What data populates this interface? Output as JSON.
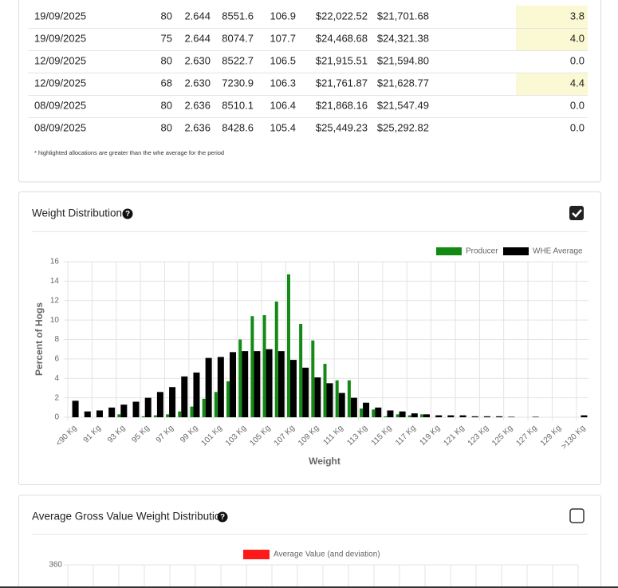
{
  "table": {
    "rows": [
      [
        "19/09/2025",
        "80",
        "2.644",
        "8551.6",
        "106.9",
        "$22,022.52",
        "$21,701.68",
        "3.8"
      ],
      [
        "19/09/2025",
        "75",
        "2.644",
        "8074.7",
        "107.7",
        "$24,468.68",
        "$24,321.38",
        "4.0"
      ],
      [
        "12/09/2025",
        "80",
        "2.630",
        "8522.7",
        "106.5",
        "$21,915.51",
        "$21,594.80",
        "0.0"
      ],
      [
        "12/09/2025",
        "68",
        "2.630",
        "7230.9",
        "106.3",
        "$21,761.87",
        "$21,628.77",
        "4.4"
      ],
      [
        "08/09/2025",
        "80",
        "2.636",
        "8510.1",
        "106.4",
        "$21,868.16",
        "$21,547.49",
        "0.0"
      ],
      [
        "08/09/2025",
        "80",
        "2.636",
        "8428.6",
        "105.4",
        "$25,449.23",
        "$25,292.82",
        "0.0"
      ]
    ],
    "highlighted": [
      true,
      true,
      false,
      true,
      false,
      false
    ],
    "footnote": "* highlighted allocations are greater than the whe average for the period"
  },
  "panels": [
    {
      "title": "Weight Distribution",
      "checked": true
    },
    {
      "title": "Average Gross Value Weight Distribution",
      "checked": false
    }
  ],
  "chart_data": [
    {
      "type": "bar",
      "x_label": "Weight",
      "y_label": "Percent of Hogs",
      "categories": [
        "<90 Kg",
        null,
        "91 Kg",
        null,
        "93 Kg",
        null,
        "95 Kg",
        null,
        "97 Kg",
        null,
        "99 Kg",
        null,
        "101 Kg",
        null,
        "103 Kg",
        null,
        "105 Kg",
        null,
        "107 Kg",
        null,
        "109 Kg",
        null,
        "111 Kg",
        null,
        "113 Kg",
        null,
        "115 Kg",
        null,
        "117 Kg",
        null,
        "119 Kg",
        null,
        "121 Kg",
        null,
        "123 Kg",
        null,
        "125 Kg",
        null,
        "127 Kg",
        null,
        "129 Kg",
        null,
        ">130 Kg"
      ],
      "series": [
        {
          "name": "Producer",
          "color": "#138a13",
          "values": [
            0,
            0,
            0,
            0,
            0.3,
            0,
            0.1,
            0.2,
            0.3,
            0.6,
            1.1,
            1.9,
            2.6,
            3.7,
            8.0,
            10.4,
            10.5,
            11.9,
            14.7,
            9.6,
            7.9,
            5.5,
            3.8,
            3.8,
            0.9,
            0.8,
            0.1,
            0.3,
            0.2,
            0.3,
            0,
            0,
            0,
            0,
            0,
            0,
            0,
            0,
            0,
            0,
            0,
            0,
            0
          ]
        },
        {
          "name": "WHE Average",
          "color": "#000000",
          "values": [
            1.7,
            0.6,
            0.7,
            1.0,
            1.3,
            1.6,
            2.0,
            2.6,
            3.1,
            4.2,
            4.6,
            6.1,
            6.2,
            6.7,
            6.8,
            6.8,
            7.0,
            6.8,
            5.9,
            5.1,
            4.1,
            3.5,
            2.5,
            2.0,
            1.5,
            1.0,
            0.7,
            0.6,
            0.4,
            0.3,
            0.2,
            0.2,
            0.2,
            0.1,
            0.1,
            0.1,
            0.05,
            0,
            0.05,
            0,
            0,
            0,
            0.2
          ]
        }
      ],
      "ylim": [
        0,
        16
      ],
      "yticks": [
        0,
        2,
        4,
        6,
        8,
        10,
        12,
        14,
        16
      ],
      "grid": true,
      "legend": "top-right"
    },
    {
      "type": "bar",
      "series": [
        {
          "name": "Average Value (and deviation)",
          "color": "#ff1a1a"
        }
      ],
      "yticks": [
        360
      ],
      "grid": true,
      "legend": "top"
    }
  ]
}
